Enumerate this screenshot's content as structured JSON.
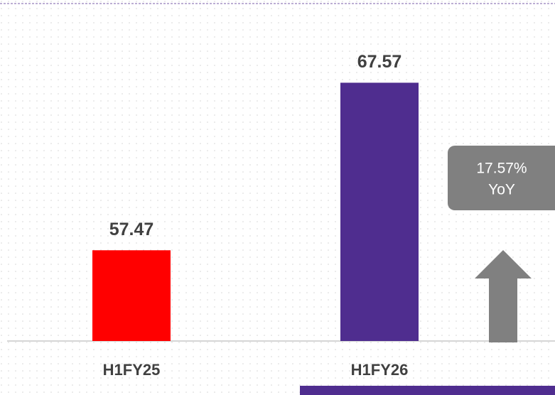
{
  "chart_data": {
    "type": "bar",
    "categories": [
      "H1FY25",
      "H1FY26"
    ],
    "values": [
      57.47,
      67.57
    ],
    "colors": [
      "#ff0000",
      "#4f2d8f"
    ],
    "ylim": [
      52,
      72
    ],
    "annotation": [
      "17.57%",
      "YoY"
    ]
  }
}
